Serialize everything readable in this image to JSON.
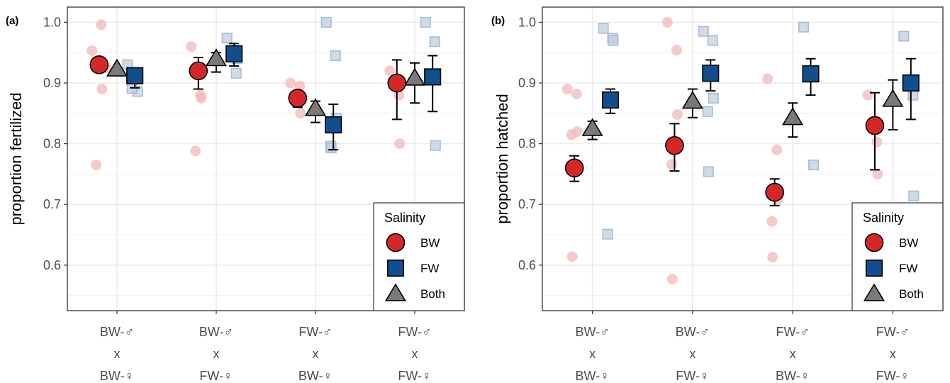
{
  "colors": {
    "BW": "#d62728",
    "FW": "#114f8c",
    "Both": "#7a7a7a",
    "raw_BW": "#f2b8b8",
    "raw_FW": "#c0cfe0"
  },
  "chart_data": [
    {
      "type": "scatter",
      "panel_label": "(a)",
      "ylabel": "proportion fertilized",
      "ylim": [
        0.525,
        1.025
      ],
      "yticks": [
        0.6,
        0.7,
        0.8,
        0.9,
        1.0
      ],
      "ytick_labels": [
        "0.6",
        "0.7",
        "0.8",
        "0.9",
        "1.0"
      ],
      "grid": true,
      "categories": [
        {
          "lines": [
            "BW-♂",
            "x",
            "BW-♀"
          ]
        },
        {
          "lines": [
            "BW-♂",
            "x",
            "FW-♀"
          ]
        },
        {
          "lines": [
            "FW-♂",
            "x",
            "BW-♀"
          ]
        },
        {
          "lines": [
            "FW-♂",
            "x",
            "FW-♀"
          ]
        }
      ],
      "series": [
        {
          "name": "BW",
          "shape": "circle",
          "offset": -0.18,
          "means": [
            0.93,
            0.92,
            0.875,
            0.9
          ],
          "lower": [
            0.93,
            0.89,
            0.86,
            0.84
          ],
          "upper": [
            0.93,
            0.942,
            0.885,
            0.938
          ],
          "raw": [
            [
              0.953,
              0.996,
              0.89,
              0.765,
              0.93,
              0.925
            ],
            [
              0.96,
              0.88,
              0.875,
              0.788
            ],
            [
              0.9,
              0.895,
              0.85,
              0.88
            ],
            [
              0.92,
              0.88,
              0.8
            ]
          ]
        },
        {
          "name": "FW",
          "shape": "square",
          "offset": 0.18,
          "means": [
            0.912,
            0.948,
            0.831,
            0.91
          ],
          "lower": [
            0.892,
            0.928,
            0.79,
            0.853
          ],
          "upper": [
            0.924,
            0.965,
            0.865,
            0.945
          ],
          "raw": [
            [
              0.93,
              0.914,
              0.886,
              0.891
            ],
            [
              0.974,
              0.916,
              0.94
            ],
            [
              1.0,
              0.945,
              0.842,
              0.796,
              0.793
            ],
            [
              1.0,
              0.968,
              0.797
            ]
          ]
        },
        {
          "name": "Both",
          "shape": "triangle",
          "offset": 0,
          "means": [
            0.923,
            0.94,
            0.858,
            0.908
          ],
          "lower": [
            0.923,
            0.918,
            0.835,
            0.867
          ],
          "upper": [
            0.923,
            0.95,
            0.87,
            0.933
          ],
          "raw": [
            [],
            [],
            [],
            []
          ]
        }
      ],
      "legend": {
        "title": "Salinity",
        "entries": [
          "BW",
          "FW",
          "Both"
        ],
        "placement": "bottom-right"
      }
    },
    {
      "type": "scatter",
      "panel_label": "(b)",
      "ylabel": "proportion hatched",
      "ylim": [
        0.525,
        1.025
      ],
      "yticks": [
        0.6,
        0.7,
        0.8,
        0.9,
        1.0
      ],
      "ytick_labels": [
        "0.6",
        "0.7",
        "0.8",
        "0.9",
        "1.0"
      ],
      "grid": true,
      "categories": [
        {
          "lines": [
            "BW-♂",
            "x",
            "BW-♀"
          ]
        },
        {
          "lines": [
            "BW-♂",
            "x",
            "FW-♀"
          ]
        },
        {
          "lines": [
            "FW-♂",
            "x",
            "BW-♀"
          ]
        },
        {
          "lines": [
            "FW-♂",
            "x",
            "FW-♀"
          ]
        }
      ],
      "series": [
        {
          "name": "BW",
          "shape": "circle",
          "offset": -0.18,
          "means": [
            0.76,
            0.797,
            0.72,
            0.83
          ],
          "lower": [
            0.738,
            0.755,
            0.698,
            0.757
          ],
          "upper": [
            0.78,
            0.833,
            0.742,
            0.884
          ],
          "raw": [
            [
              0.89,
              0.882,
              0.82,
              0.815,
              0.614
            ],
            [
              1.0,
              0.954,
              0.848,
              0.766,
              0.577
            ],
            [
              0.907,
              0.79,
              0.708,
              0.672,
              0.613
            ],
            [
              0.88,
              0.803,
              0.75
            ]
          ]
        },
        {
          "name": "FW",
          "shape": "square",
          "offset": 0.18,
          "means": [
            0.872,
            0.916,
            0.915,
            0.9
          ],
          "lower": [
            0.85,
            0.887,
            0.88,
            0.84
          ],
          "upper": [
            0.89,
            0.938,
            0.94,
            0.94
          ],
          "raw": [
            [
              0.99,
              0.974,
              0.97,
              0.651
            ],
            [
              0.985,
              0.97,
              0.875,
              0.853,
              0.754
            ],
            [
              0.992,
              0.917,
              0.765
            ],
            [
              0.977,
              0.88,
              0.714
            ]
          ]
        },
        {
          "name": "Both",
          "shape": "triangle",
          "offset": 0,
          "means": [
            0.825,
            0.87,
            0.843,
            0.873
          ],
          "lower": [
            0.807,
            0.843,
            0.811,
            0.823
          ],
          "upper": [
            0.837,
            0.89,
            0.867,
            0.905
          ],
          "raw": [
            [],
            [],
            [],
            []
          ]
        }
      ],
      "legend": {
        "title": "Salinity",
        "entries": [
          "BW",
          "FW",
          "Both"
        ],
        "placement": "bottom-right"
      }
    }
  ]
}
